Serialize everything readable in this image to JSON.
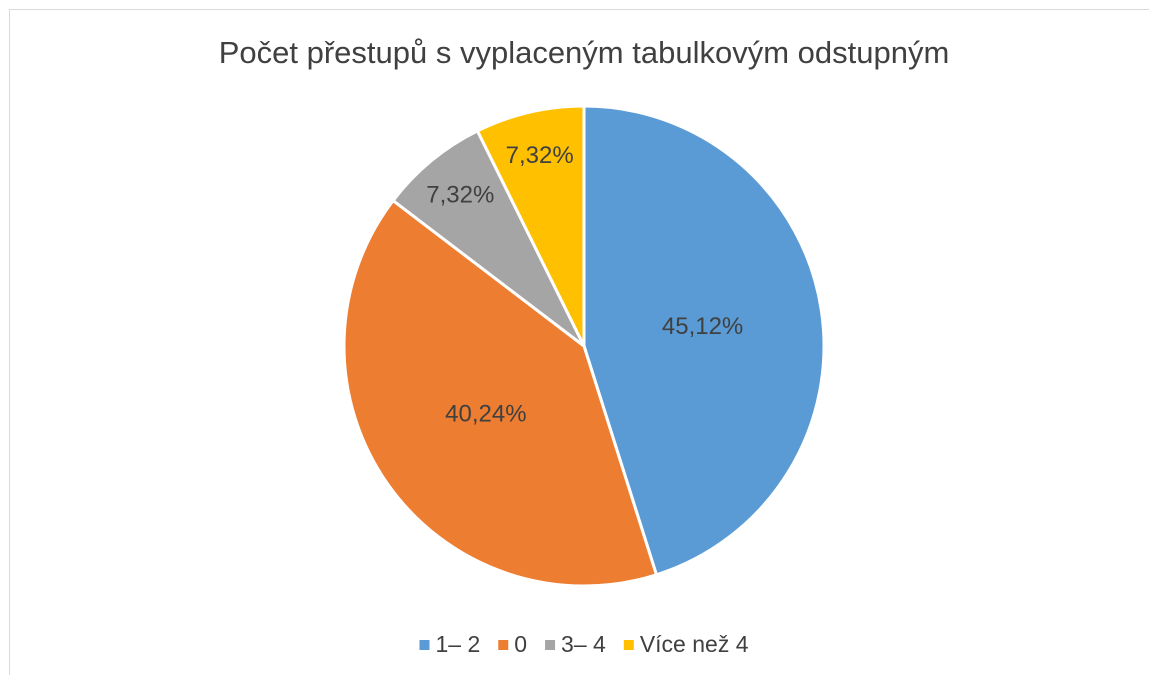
{
  "chart_data": {
    "type": "pie",
    "title": "Počet přestupů s vyplaceným tabulkovým odstupným",
    "categories": [
      "1– 2",
      "0",
      "3– 4",
      "Více než 4"
    ],
    "values": [
      45.12,
      40.24,
      7.32,
      7.32
    ],
    "value_labels": [
      "45,12%",
      "40,24%",
      "7,32%",
      "7,32%"
    ],
    "colors": [
      "#5b9bd5",
      "#ed7d31",
      "#a5a5a5",
      "#ffc000"
    ],
    "legend": "bottom"
  }
}
